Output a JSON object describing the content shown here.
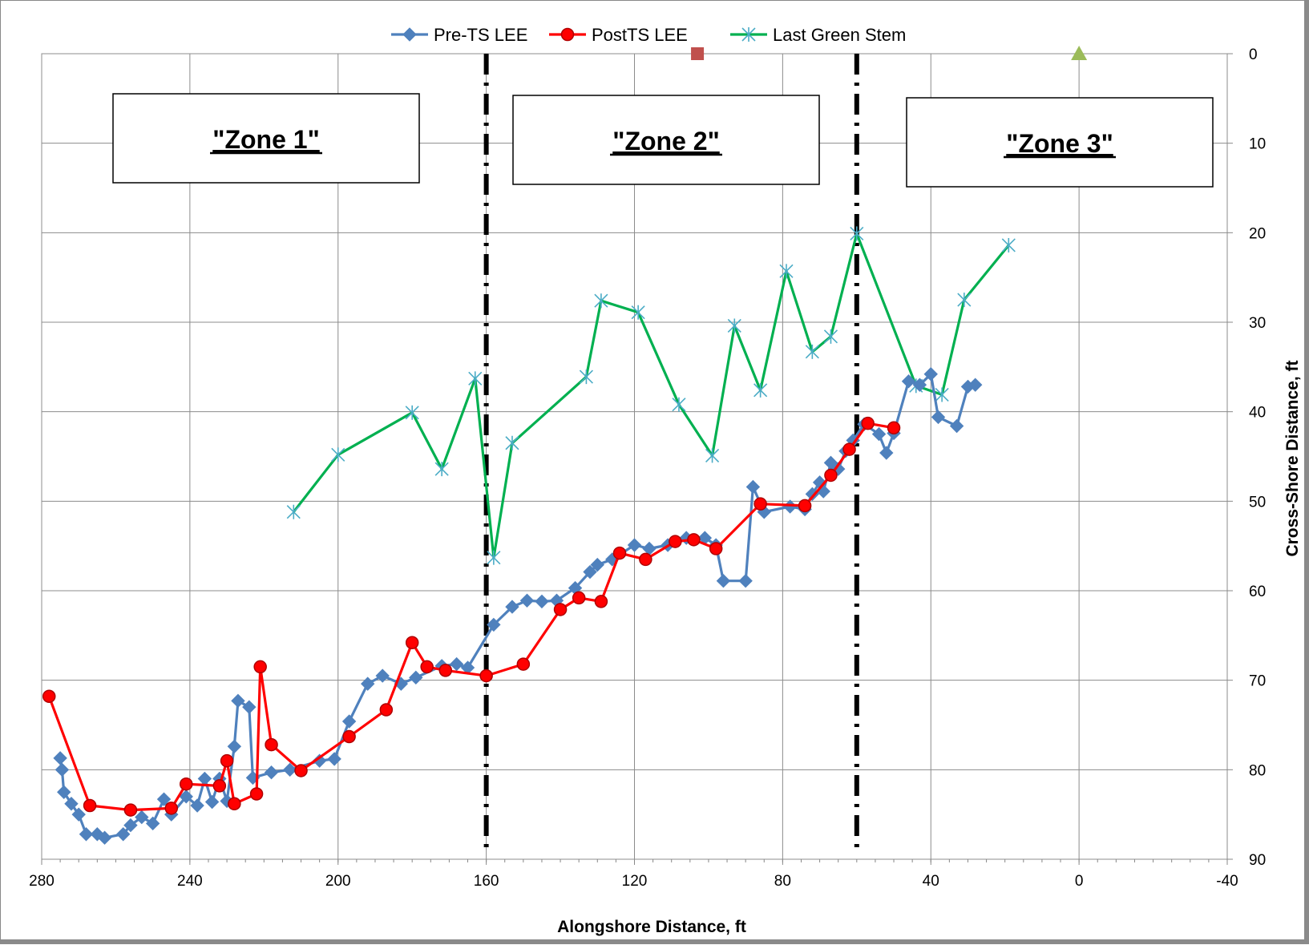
{
  "chart_data": {
    "type": "line",
    "xlabel": "Alongshore Distance, ft",
    "ylabel": "Cross-Shore Distance, ft",
    "xlim": [
      280,
      -40
    ],
    "ylim": [
      0,
      90
    ],
    "x_reversed": true,
    "y_reversed": true,
    "y_axis_side": "right",
    "x_ticks": [
      "280",
      "240",
      "200",
      "160",
      "120",
      "80",
      "40",
      "0",
      "-40"
    ],
    "y_ticks": [
      "0",
      "10",
      "20",
      "30",
      "40",
      "50",
      "60",
      "70",
      "80",
      "90"
    ],
    "grid": true,
    "legend_position": "top-center",
    "zones": [
      {
        "label": "\"Zone 1\""
      },
      {
        "label": "\"Zone 2\""
      },
      {
        "label": "\"Zone 3\""
      }
    ],
    "zone_boundaries": [
      160,
      60
    ],
    "series": [
      {
        "name": "Pre-TS LEE",
        "color": "#4f81bd",
        "marker": "diamond",
        "points": [
          [
            275,
            78.7
          ],
          [
            274.5,
            80
          ],
          [
            274,
            82.5
          ],
          [
            272,
            83.8
          ],
          [
            270,
            85
          ],
          [
            268,
            87.2
          ],
          [
            265,
            87.2
          ],
          [
            263,
            87.6
          ],
          [
            258,
            87.2
          ],
          [
            256,
            86.2
          ],
          [
            253,
            85.3
          ],
          [
            250,
            86
          ],
          [
            247,
            83.3
          ],
          [
            245,
            85
          ],
          [
            241,
            83
          ],
          [
            238,
            84
          ],
          [
            236,
            81
          ],
          [
            234,
            83.6
          ],
          [
            232,
            81
          ],
          [
            230,
            83.5
          ],
          [
            228,
            77.4
          ],
          [
            227,
            72.3
          ],
          [
            224,
            73
          ],
          [
            223,
            80.9
          ],
          [
            218,
            80.3
          ],
          [
            213,
            80
          ],
          [
            205,
            79
          ],
          [
            201,
            78.8
          ],
          [
            197,
            74.6
          ],
          [
            192,
            70.4
          ],
          [
            188,
            69.5
          ],
          [
            183,
            70.4
          ],
          [
            179,
            69.7
          ],
          [
            172,
            68.4
          ],
          [
            168,
            68.2
          ],
          [
            165,
            68.6
          ],
          [
            158,
            63.8
          ],
          [
            153,
            61.8
          ],
          [
            149,
            61.1
          ],
          [
            145,
            61.2
          ],
          [
            141,
            61.1
          ],
          [
            136,
            59.7
          ],
          [
            132,
            57.9
          ],
          [
            130,
            57.1
          ],
          [
            126,
            56.5
          ],
          [
            120,
            54.9
          ],
          [
            116,
            55.3
          ],
          [
            111,
            54.9
          ],
          [
            106,
            54.1
          ],
          [
            101,
            54.1
          ],
          [
            98,
            54.9
          ],
          [
            96,
            58.9
          ],
          [
            90,
            58.9
          ],
          [
            88,
            48.4
          ],
          [
            85,
            51.2
          ],
          [
            78,
            50.6
          ],
          [
            74,
            50.9
          ],
          [
            72,
            49.2
          ],
          [
            70,
            47.9
          ],
          [
            69,
            48.9
          ],
          [
            67,
            45.7
          ],
          [
            65,
            46.4
          ],
          [
            63,
            44.4
          ],
          [
            61,
            43.2
          ],
          [
            58,
            41.4
          ],
          [
            54,
            42.5
          ],
          [
            52,
            44.6
          ],
          [
            50,
            42.4
          ],
          [
            46,
            36.6
          ],
          [
            43,
            37
          ],
          [
            40,
            35.8
          ],
          [
            38,
            40.6
          ],
          [
            33,
            41.6
          ],
          [
            30,
            37.2
          ],
          [
            28,
            37
          ]
        ]
      },
      {
        "name": "PostTS LEE",
        "color": "#ff0000",
        "marker": "circle",
        "points": [
          [
            278,
            71.8
          ],
          [
            267,
            84
          ],
          [
            256,
            84.5
          ],
          [
            245,
            84.3
          ],
          [
            241,
            81.6
          ],
          [
            232,
            81.8
          ],
          [
            230,
            79
          ],
          [
            228,
            83.8
          ],
          [
            222,
            82.7
          ],
          [
            221,
            68.5
          ],
          [
            218,
            77.2
          ],
          [
            210,
            80.1
          ],
          [
            197,
            76.3
          ],
          [
            187,
            73.3
          ],
          [
            180,
            65.8
          ],
          [
            176,
            68.5
          ],
          [
            171,
            68.9
          ],
          [
            160,
            69.5
          ],
          [
            150,
            68.2
          ],
          [
            140,
            62.1
          ],
          [
            135,
            60.8
          ],
          [
            129,
            61.2
          ],
          [
            124,
            55.8
          ],
          [
            117,
            56.5
          ],
          [
            109,
            54.5
          ],
          [
            104,
            54.3
          ],
          [
            98,
            55.3
          ],
          [
            86,
            50.3
          ],
          [
            74,
            50.5
          ],
          [
            67,
            47.1
          ],
          [
            62,
            44.2
          ],
          [
            57,
            41.3
          ],
          [
            50,
            41.8
          ]
        ]
      },
      {
        "name": "Last Green Stem",
        "color": "#00b050",
        "marker": "asterisk",
        "points": [
          [
            212,
            51.2
          ],
          [
            200,
            44.8
          ],
          [
            180,
            40.1
          ],
          [
            172,
            46.4
          ],
          [
            163,
            36.3
          ],
          [
            158,
            56.3
          ],
          [
            153,
            43.5
          ],
          [
            133,
            36.1
          ],
          [
            129,
            27.6
          ],
          [
            119,
            28.9
          ],
          [
            108,
            39.2
          ],
          [
            99,
            44.9
          ],
          [
            93,
            30.4
          ],
          [
            86,
            37.6
          ],
          [
            79,
            24.3
          ],
          [
            72,
            33.3
          ],
          [
            67,
            31.6
          ],
          [
            60,
            20.1
          ],
          [
            44,
            37.1
          ],
          [
            37,
            38.1
          ],
          [
            31,
            27.5
          ],
          [
            19,
            21.4
          ]
        ]
      }
    ],
    "extra_markers": [
      {
        "shape": "square",
        "color": "#c0504d",
        "x": 103,
        "y": 0
      },
      {
        "shape": "triangle",
        "color": "#9bbb59",
        "x": 0,
        "y": 0
      }
    ]
  }
}
